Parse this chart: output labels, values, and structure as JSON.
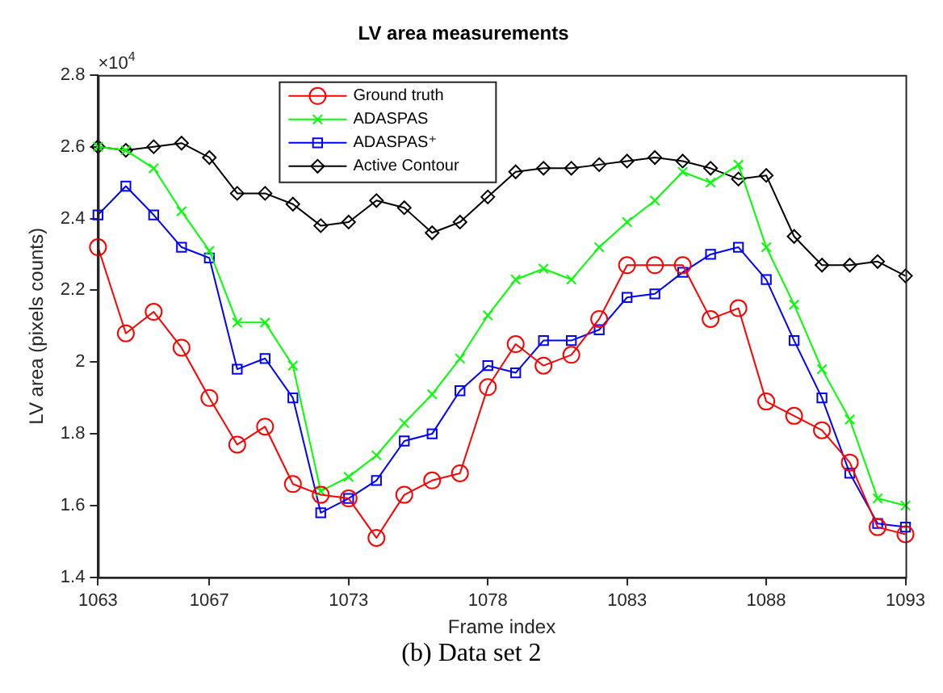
{
  "chart_data": {
    "type": "line",
    "title": "LV area measurements",
    "xlabel": "Frame index",
    "ylabel": "LV area (pixels counts)",
    "annotations": [
      "×10$^{4}$",
      "(b) Data set 2"
    ],
    "categories": [
      "1063",
      null,
      null,
      null,
      "1067",
      null,
      null,
      null,
      null,
      "1073",
      null,
      null,
      null,
      null,
      "1078",
      null,
      null,
      null,
      null,
      "1083",
      null,
      null,
      null,
      null,
      "1088",
      null,
      null,
      null,
      null,
      "1093"
    ],
    "series": [
      {
        "name": "Ground truth",
        "color": "#ff0000",
        "marker": "circle",
        "values": [
          2.32,
          2.08,
          2.14,
          2.04,
          1.9,
          1.77,
          1.82,
          1.66,
          1.63,
          1.62,
          1.51,
          1.63,
          1.67,
          1.69,
          1.93,
          2.05,
          1.99,
          2.02,
          2.12,
          2.27,
          2.27,
          2.27,
          2.12,
          2.15,
          1.89,
          1.85,
          1.81,
          1.72,
          1.54,
          1.52
        ]
      },
      {
        "name": "ADASPAS",
        "color": "#00ff00",
        "marker": "cross",
        "values": [
          2.6,
          2.59,
          2.54,
          2.42,
          2.31,
          2.11,
          2.11,
          1.99,
          1.64,
          1.68,
          1.74,
          1.83,
          1.91,
          2.01,
          2.13,
          2.23,
          2.26,
          2.23,
          2.32,
          2.39,
          2.45,
          2.53,
          2.5,
          2.55,
          2.32,
          2.16,
          1.98,
          1.84,
          1.62,
          1.6
        ]
      },
      {
        "name": "ADASPAS⁺",
        "color": "#0000ff",
        "marker": "square",
        "values": [
          2.41,
          2.49,
          2.41,
          2.32,
          2.29,
          1.98,
          2.01,
          1.9,
          1.58,
          1.62,
          1.67,
          1.78,
          1.8,
          1.92,
          1.99,
          1.97,
          2.06,
          2.06,
          2.09,
          2.18,
          2.19,
          2.25,
          2.3,
          2.32,
          2.23,
          2.06,
          1.9,
          1.69,
          1.55,
          1.54
        ]
      },
      {
        "name": "Active Contour",
        "color": "#000000",
        "marker": "diamond",
        "values": [
          2.6,
          2.59,
          2.6,
          2.61,
          2.57,
          2.47,
          2.47,
          2.44,
          2.38,
          2.39,
          2.45,
          2.43,
          2.36,
          2.39,
          2.46,
          2.53,
          2.54,
          2.54,
          2.55,
          2.56,
          2.57,
          2.56,
          2.54,
          2.51,
          2.52,
          2.35,
          2.27,
          2.27,
          2.28,
          2.24
        ]
      }
    ],
    "ylim": [
      1.4,
      2.8
    ],
    "yticks": [
      1.4,
      1.6,
      1.8,
      2,
      2.2,
      2.4,
      2.6,
      2.8
    ],
    "grid": false,
    "legend": "top left",
    "line_style": "solid"
  }
}
